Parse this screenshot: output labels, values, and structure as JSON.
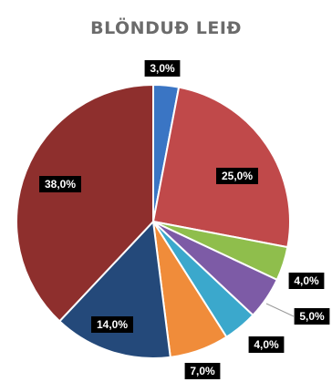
{
  "chart_data": {
    "type": "pie",
    "title": "BLÖNDUÐ LEIÐ",
    "start_angle_deg": 0,
    "direction": "clockwise",
    "legend": "none",
    "slices": [
      {
        "label": "3,0%",
        "value": 3.0,
        "color": "#3a75c4"
      },
      {
        "label": "25,0%",
        "value": 25.0,
        "color": "#c0494a"
      },
      {
        "label": "4,0%",
        "value": 4.0,
        "color": "#8fbe4c"
      },
      {
        "label": "5,0%",
        "value": 5.0,
        "color": "#7d5ba6"
      },
      {
        "label": "4,0%",
        "value": 4.0,
        "color": "#3ba8cc"
      },
      {
        "label": "7,0%",
        "value": 7.0,
        "color": "#f08c3a"
      },
      {
        "label": "14,0%",
        "value": 14.0,
        "color": "#24497a"
      },
      {
        "label": "38,0%",
        "value": 38.0,
        "color": "#8e2f2d"
      }
    ]
  }
}
